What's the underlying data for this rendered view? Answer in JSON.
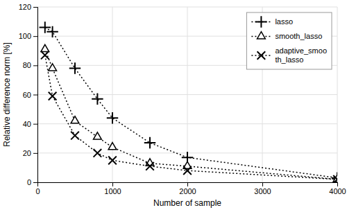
{
  "chart_data": {
    "type": "line",
    "x": [
      100,
      200,
      500,
      800,
      1000,
      1500,
      2000,
      4000
    ],
    "series": [
      {
        "name": "lasso",
        "color": "#000000",
        "marker": "plus",
        "line_style": "dotted",
        "values": [
          106,
          103,
          78,
          57,
          44,
          27,
          17,
          3
        ]
      },
      {
        "name": "smooth_lasso",
        "color": "#000000",
        "marker": "triangle",
        "line_style": "dotted",
        "values": [
          91,
          78,
          42,
          31,
          24,
          13,
          11,
          2
        ]
      },
      {
        "name": "adaptive_smoo\nth_lasso",
        "color": "#000000",
        "marker": "x",
        "line_style": "dotted",
        "values": [
          87,
          59,
          32,
          20,
          15,
          11,
          8,
          2
        ]
      }
    ],
    "xlabel": "Number of sample",
    "ylabel": "Relative difference norm [%]",
    "xlim": [
      0,
      4000
    ],
    "ylim": [
      0,
      120
    ],
    "xticks": [
      0,
      1000,
      2000,
      3000,
      4000
    ],
    "yticks": [
      0,
      20,
      40,
      60,
      80,
      100,
      120
    ],
    "grid": true,
    "legend": "upper right"
  }
}
